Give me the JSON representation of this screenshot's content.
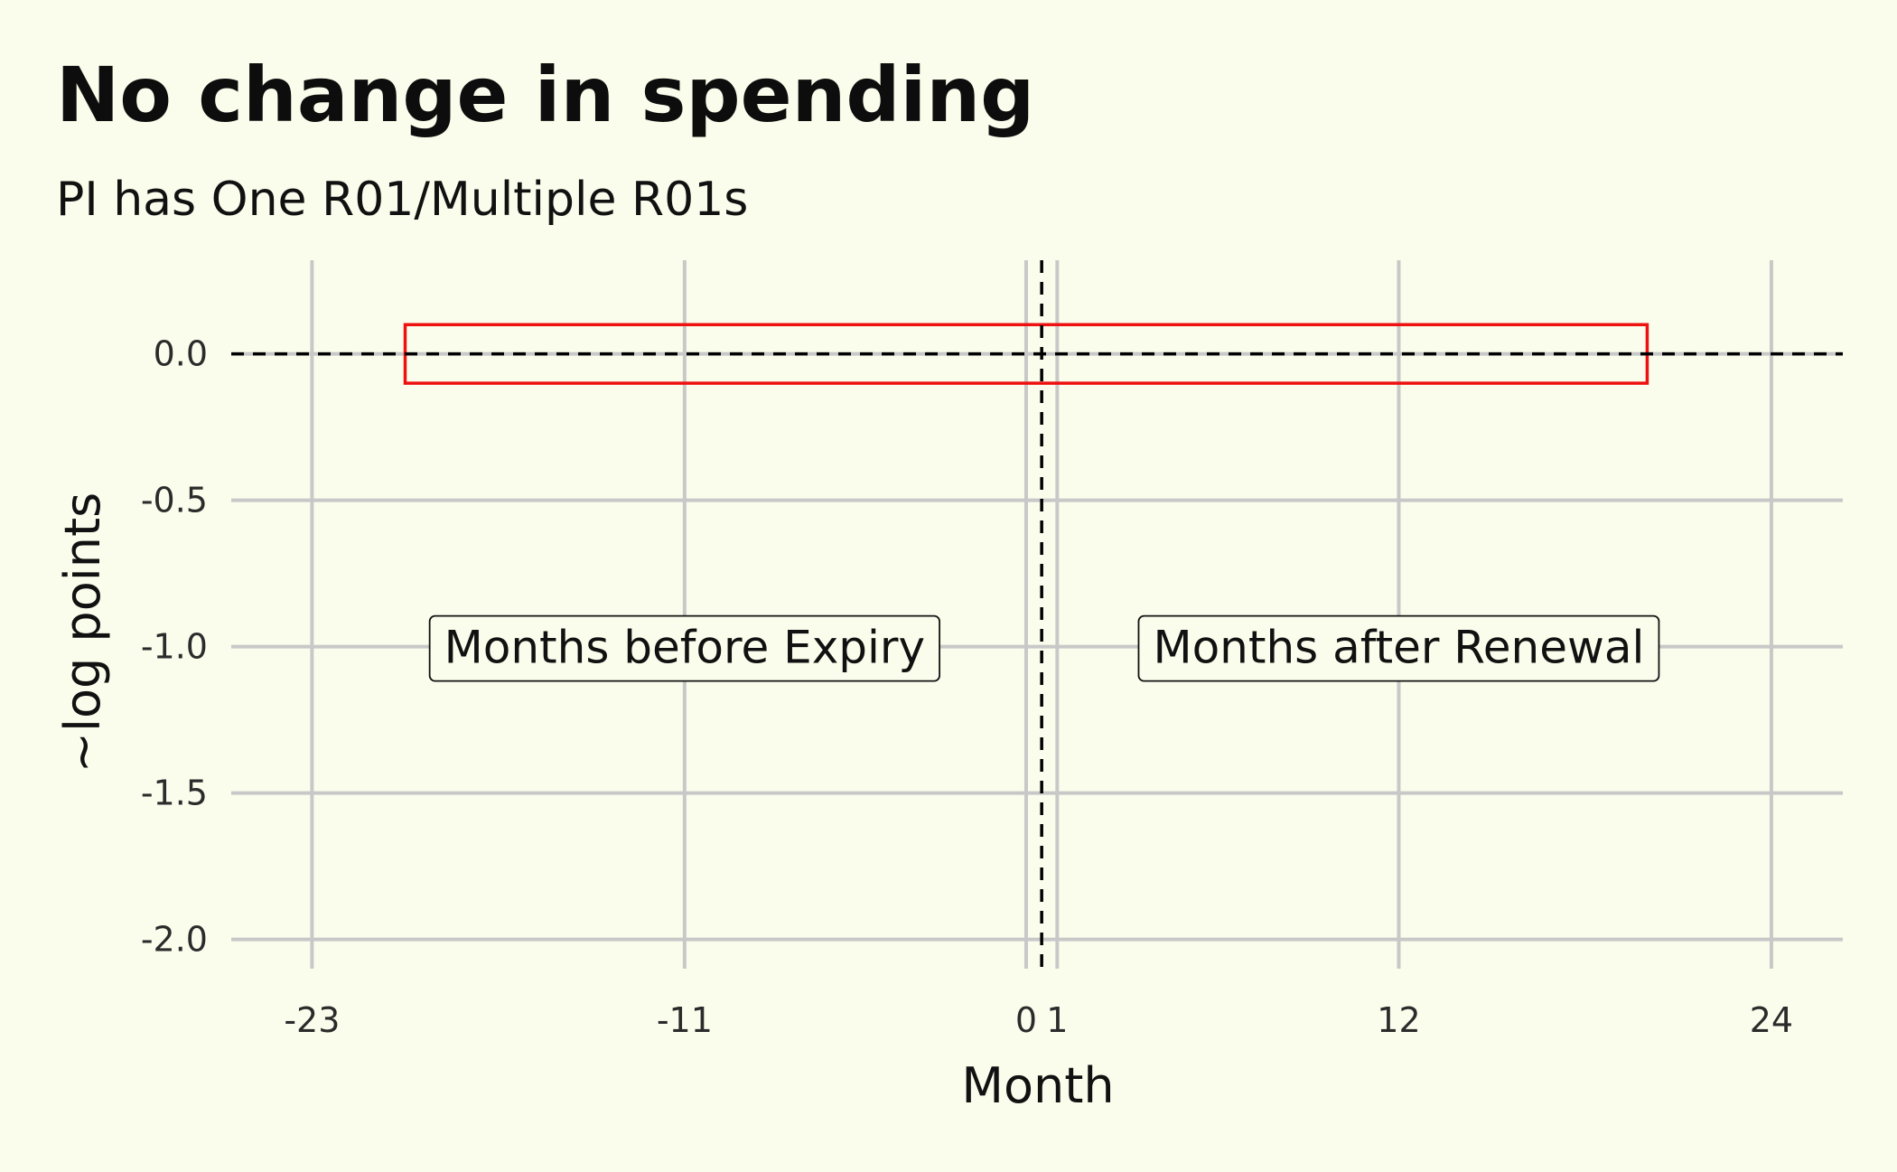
{
  "chart_data": {
    "type": "line",
    "title": "No change in spending",
    "subtitle": "PI has One R01/Multiple R01s",
    "xlabel": "Month",
    "ylabel": "~log points",
    "x_ticks": [
      -23,
      -11,
      0,
      1,
      12,
      24
    ],
    "x_tick_labels": [
      "-23",
      "-11",
      "0",
      "1",
      "12",
      "24"
    ],
    "y_ticks": [
      0.0,
      -0.5,
      -1.0,
      -1.5,
      -2.0
    ],
    "y_tick_labels": [
      "0.0",
      "-0.5",
      "-1.0",
      "-1.5",
      "-2.0"
    ],
    "xlim": [
      -25.6,
      26.3
    ],
    "ylim": [
      -2.1,
      0.32
    ],
    "grid": true,
    "reference_lines": [
      {
        "orientation": "horizontal",
        "y": 0.0,
        "style": "dashed",
        "color": "#000000"
      },
      {
        "orientation": "vertical",
        "x": 0.5,
        "style": "dashed",
        "color": "#000000"
      }
    ],
    "highlight_box": {
      "x_range": [
        -20,
        20
      ],
      "y_range": [
        -0.1,
        0.1
      ],
      "color": "#ee1111"
    },
    "annotations": [
      {
        "text": "Months before Expiry",
        "x": -11,
        "y": -1.0
      },
      {
        "text": "Months after Renewal",
        "x": 12,
        "y": -1.0
      }
    ],
    "series": []
  }
}
